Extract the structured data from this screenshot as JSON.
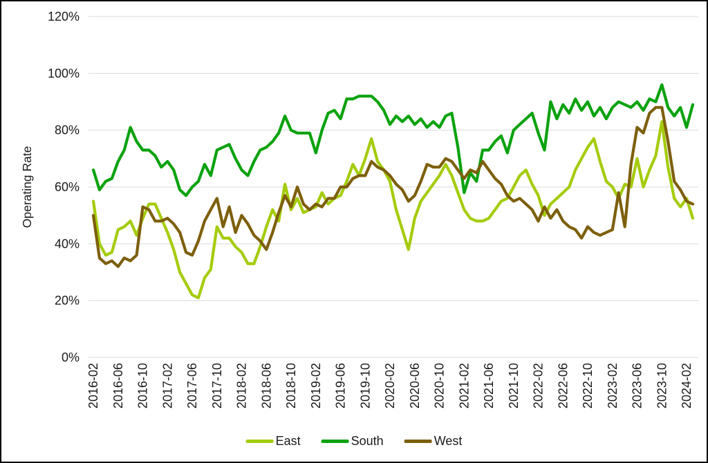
{
  "page": {
    "background": "#FFFFFF",
    "border_color": "#000000",
    "grid_color": "#D9D9D9",
    "text_color": "#1a1a1a"
  },
  "chart_data": {
    "type": "line",
    "title": "",
    "xlabel": "",
    "ylabel": "Operating Rate",
    "ylim": [
      0,
      120
    ],
    "y_ticks": [
      "0%",
      "20%",
      "40%",
      "60%",
      "80%",
      "100%",
      "120%"
    ],
    "grid": "horizontal",
    "legend_position": "bottom",
    "x_start": "2016-02",
    "x_interval_months": 1,
    "n_points": 98,
    "x_tick_every": 4,
    "x_tick_labels": [
      "2016-02",
      "2016-06",
      "2016-10",
      "2017-02",
      "2017-06",
      "2017-10",
      "2018-02",
      "2018-06",
      "2018-10",
      "2019-02",
      "2019-06",
      "2019-10",
      "2020-02",
      "2020-06",
      "2020-10",
      "2021-02",
      "2021-06",
      "2021-10",
      "2022-02",
      "2022-06",
      "2022-10",
      "2023-02",
      "2023-06",
      "2023-10",
      "2024-02"
    ],
    "unit": "percent",
    "series": [
      {
        "name": "East",
        "color": "#A4CC0C",
        "values": [
          55,
          40,
          36,
          37,
          45,
          46,
          48,
          43,
          49,
          54,
          54,
          49,
          44,
          38,
          30,
          26,
          22,
          21,
          28,
          31,
          46,
          42,
          42,
          39,
          37,
          33,
          33,
          39,
          46,
          52,
          48,
          61,
          52,
          56,
          51,
          52,
          53,
          58,
          54,
          56,
          57,
          62,
          68,
          64,
          70,
          77,
          69,
          66,
          62,
          52,
          45,
          38,
          49,
          55,
          58,
          61,
          64,
          68,
          64,
          58,
          52,
          49,
          48,
          48,
          49,
          52,
          55,
          56,
          60,
          64,
          66,
          61,
          57,
          50,
          54,
          56,
          58,
          60,
          66,
          70,
          74,
          77,
          69,
          62,
          60,
          56,
          61,
          60,
          70,
          60,
          66,
          71,
          83,
          67,
          56,
          53,
          56,
          49
        ]
      },
      {
        "name": "South",
        "color": "#0AA20E",
        "values": [
          66,
          59,
          62,
          63,
          69,
          73,
          81,
          76,
          73,
          73,
          71,
          67,
          69,
          66,
          59,
          57,
          60,
          62,
          68,
          64,
          73,
          74,
          75,
          70,
          66,
          64,
          69,
          73,
          74,
          76,
          79,
          85,
          80,
          79,
          79,
          79,
          72,
          80,
          86,
          87,
          84,
          91,
          91,
          92,
          92,
          92,
          90,
          87,
          82,
          85,
          83,
          85,
          82,
          84,
          81,
          83,
          81,
          85,
          86,
          74,
          58,
          65,
          62,
          73,
          73,
          76,
          78,
          72,
          80,
          82,
          84,
          86,
          79,
          73,
          90,
          84,
          89,
          86,
          91,
          87,
          90,
          85,
          88,
          84,
          88,
          90,
          89,
          88,
          90,
          87,
          91,
          90,
          96,
          88,
          85,
          88,
          81,
          89
        ]
      },
      {
        "name": "West",
        "color": "#7D5F0C",
        "values": [
          50,
          35,
          33,
          34,
          32,
          35,
          34,
          36,
          53,
          52,
          48,
          48,
          49,
          47,
          44,
          37,
          36,
          41,
          48,
          52,
          56,
          46,
          53,
          44,
          50,
          47,
          43,
          41,
          38,
          44,
          51,
          57,
          53,
          60,
          54,
          52,
          54,
          53,
          56,
          56,
          60,
          60,
          63,
          64,
          64,
          69,
          67,
          66,
          64,
          61,
          59,
          55,
          57,
          62,
          68,
          67,
          67,
          70,
          69,
          66,
          63,
          66,
          65,
          69,
          66,
          63,
          61,
          57,
          55,
          56,
          54,
          52,
          48,
          53,
          49,
          52,
          48,
          46,
          45,
          42,
          46,
          44,
          43,
          44,
          45,
          58,
          46,
          68,
          81,
          79,
          86,
          88,
          88,
          76,
          62,
          59,
          55,
          54
        ]
      }
    ]
  }
}
